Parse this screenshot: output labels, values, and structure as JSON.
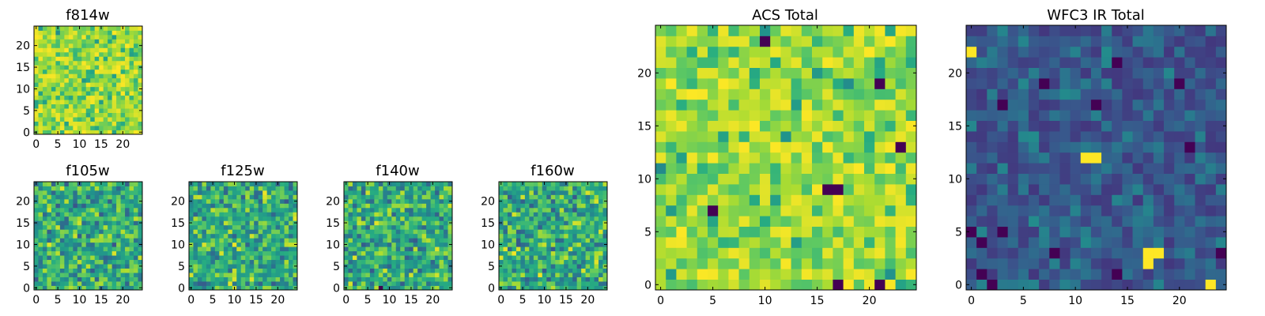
{
  "chart_data": [
    {
      "type": "heatmap",
      "id": "f814w",
      "title": "f814w",
      "grid_shape": [
        25,
        25
      ],
      "colormap": "viridis",
      "seed": 814,
      "profile": "high",
      "xticks": [
        0,
        5,
        10,
        15,
        20
      ],
      "yticks": [
        0,
        5,
        10,
        15,
        20
      ],
      "xlim": [
        0,
        25
      ],
      "ylim": [
        0,
        25
      ],
      "hot_pixels": [],
      "dark_pixels": []
    },
    {
      "type": "heatmap",
      "id": "f105w",
      "title": "f105w",
      "grid_shape": [
        25,
        25
      ],
      "colormap": "viridis",
      "seed": 105,
      "profile": "mid",
      "xticks": [
        0,
        5,
        10,
        15,
        20
      ],
      "yticks": [
        0,
        5,
        10,
        15,
        20
      ],
      "xlim": [
        0,
        25
      ],
      "ylim": [
        0,
        25
      ],
      "hot_pixels": [],
      "dark_pixels": []
    },
    {
      "type": "heatmap",
      "id": "f125w",
      "title": "f125w",
      "grid_shape": [
        25,
        25
      ],
      "colormap": "viridis",
      "seed": 125,
      "profile": "mid",
      "xticks": [
        0,
        5,
        10,
        15,
        20
      ],
      "yticks": [
        0,
        5,
        10,
        15,
        20
      ],
      "xlim": [
        0,
        25
      ],
      "ylim": [
        0,
        25
      ],
      "hot_pixels": [],
      "dark_pixels": []
    },
    {
      "type": "heatmap",
      "id": "f140w",
      "title": "f140w",
      "grid_shape": [
        25,
        25
      ],
      "colormap": "viridis",
      "seed": 140,
      "profile": "mid",
      "xticks": [
        0,
        5,
        10,
        15,
        20
      ],
      "yticks": [
        0,
        5,
        10,
        15,
        20
      ],
      "xlim": [
        0,
        25
      ],
      "ylim": [
        0,
        25
      ],
      "hot_pixels": [],
      "dark_pixels": [
        [
          8,
          0
        ]
      ]
    },
    {
      "type": "heatmap",
      "id": "f160w",
      "title": "f160w",
      "grid_shape": [
        25,
        25
      ],
      "colormap": "viridis",
      "seed": 160,
      "profile": "mid",
      "xticks": [
        0,
        5,
        10,
        15,
        20
      ],
      "yticks": [
        0,
        5,
        10,
        15,
        20
      ],
      "xlim": [
        0,
        25
      ],
      "ylim": [
        0,
        25
      ],
      "hot_pixels": [],
      "dark_pixels": []
    },
    {
      "type": "heatmap",
      "id": "acs-total",
      "title": "ACS Total",
      "grid_shape": [
        25,
        25
      ],
      "colormap": "viridis",
      "seed": 777,
      "profile": "high",
      "xticks": [
        0,
        5,
        10,
        15,
        20
      ],
      "yticks": [
        0,
        5,
        10,
        15,
        20
      ],
      "xlim": [
        0,
        25
      ],
      "ylim": [
        0,
        25
      ],
      "hot_pixels": [],
      "dark_pixels": [
        [
          10,
          23
        ],
        [
          21,
          19
        ],
        [
          23,
          13
        ],
        [
          5,
          7
        ],
        [
          16,
          9
        ],
        [
          17,
          9
        ],
        [
          17,
          0
        ],
        [
          21,
          0
        ]
      ]
    },
    {
      "type": "heatmap",
      "id": "wfc3-ir-total",
      "title": "WFC3 IR Total",
      "grid_shape": [
        25,
        25
      ],
      "colormap": "viridis",
      "seed": 333,
      "profile": "low",
      "xticks": [
        0,
        5,
        10,
        15,
        20
      ],
      "yticks": [
        0,
        5,
        10,
        15,
        20
      ],
      "xlim": [
        0,
        25
      ],
      "ylim": [
        0,
        25
      ],
      "hot_pixels": [
        [
          0,
          22
        ],
        [
          11,
          12
        ],
        [
          12,
          12
        ],
        [
          17,
          3
        ],
        [
          17,
          2
        ],
        [
          18,
          3
        ],
        [
          23,
          0
        ]
      ],
      "dark_pixels": [
        [
          14,
          21
        ],
        [
          7,
          19
        ],
        [
          20,
          19
        ],
        [
          12,
          17
        ],
        [
          3,
          17
        ],
        [
          21,
          13
        ],
        [
          0,
          5
        ],
        [
          1,
          4
        ],
        [
          3,
          5
        ],
        [
          8,
          3
        ],
        [
          24,
          3
        ],
        [
          1,
          1
        ],
        [
          14,
          1
        ],
        [
          2,
          0
        ]
      ]
    }
  ]
}
